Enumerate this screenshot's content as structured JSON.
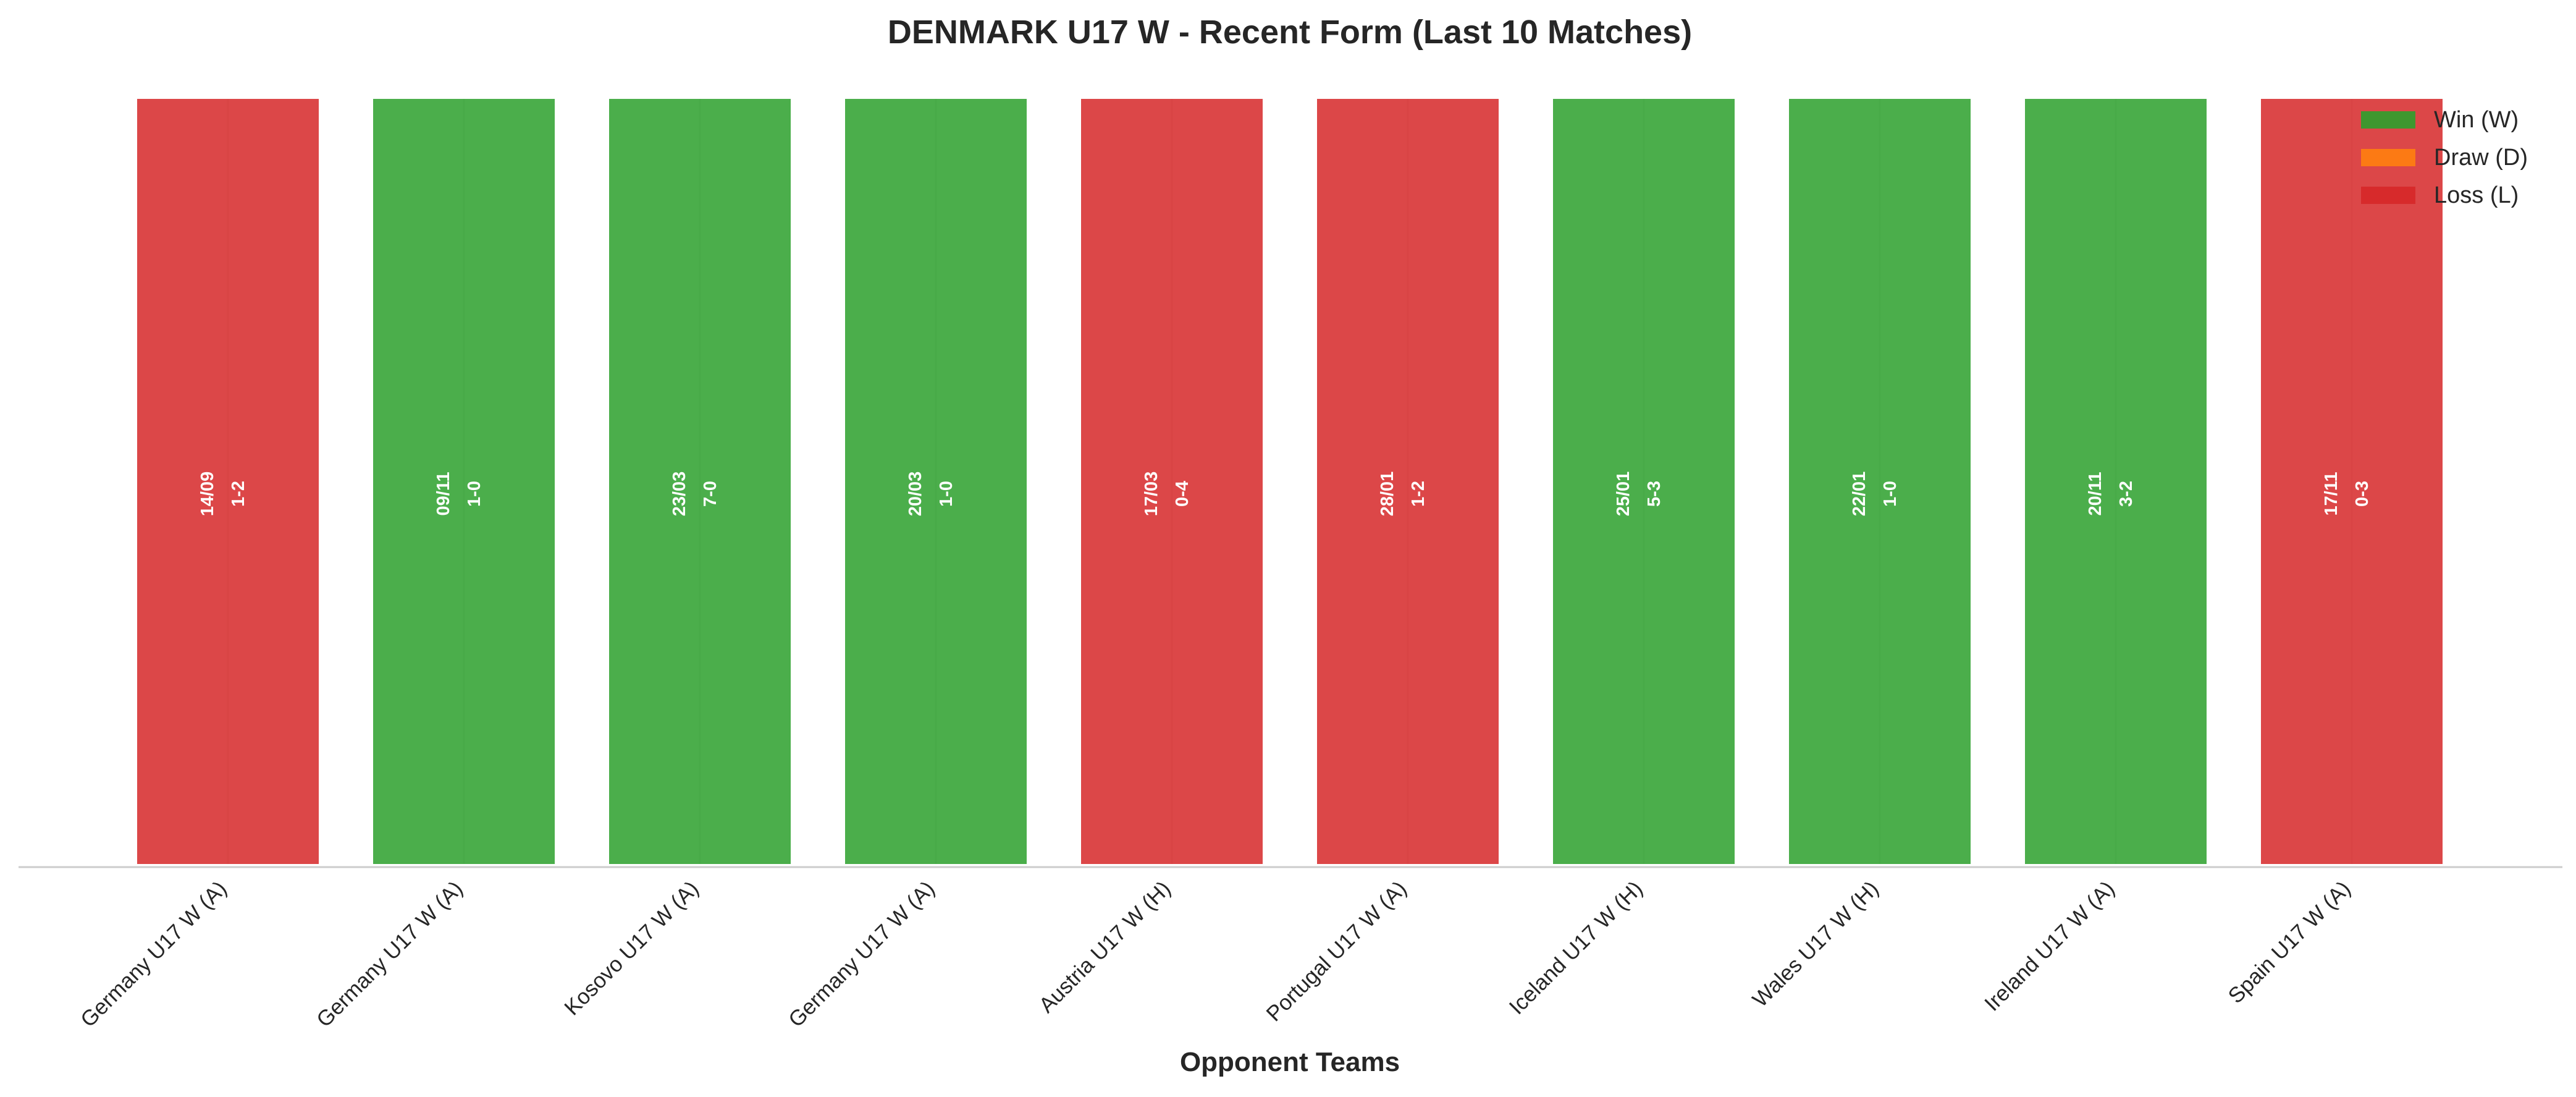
{
  "chart_data": {
    "type": "bar",
    "title": "DENMARK U17 W - Recent Form (Last 10 Matches)",
    "xlabel": "Opponent Teams",
    "ylabel": "",
    "grid": true,
    "legend_position": "top-right",
    "categories": [
      "Germany U17 W (A)",
      "Germany U17 W (A)",
      "Kosovo U17 W (A)",
      "Germany U17 W (A)",
      "Austria U17 W (H)",
      "Portugal U17 W (A)",
      "Iceland U17 W (H)",
      "Wales U17 W (H)",
      "Ireland U17 W (A)",
      "Spain U17 W (A)"
    ],
    "values": [
      1,
      1,
      1,
      1,
      1,
      1,
      1,
      1,
      1,
      1
    ],
    "results": [
      "L",
      "W",
      "W",
      "W",
      "L",
      "L",
      "W",
      "W",
      "W",
      "L"
    ],
    "dates": [
      "14/09",
      "09/11",
      "23/03",
      "20/03",
      "17/03",
      "28/01",
      "25/01",
      "22/01",
      "20/11",
      "17/11"
    ],
    "scores": [
      "1-2",
      "1-0",
      "7-0",
      "1-0",
      "0-4",
      "1-2",
      "5-3",
      "1-0",
      "3-2",
      "0-3"
    ],
    "legend": [
      {
        "key": "W",
        "label": "Win (W)",
        "color": "#2ca02c"
      },
      {
        "key": "D",
        "label": "Draw (D)",
        "color": "#ff7f0e"
      },
      {
        "key": "L",
        "label": "Loss (L)",
        "color": "#d62728"
      }
    ]
  }
}
